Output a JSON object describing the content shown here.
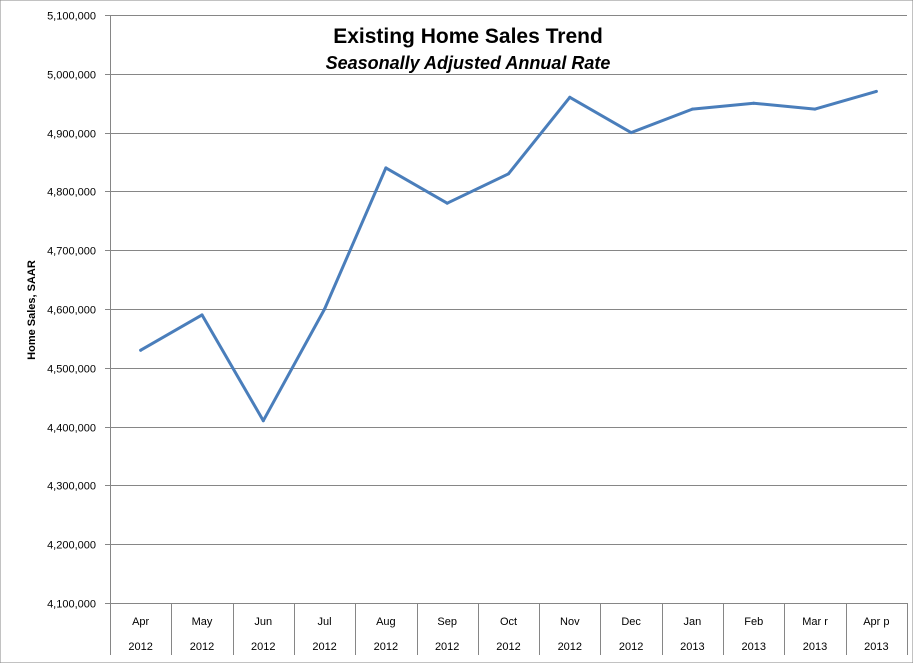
{
  "chart_data": {
    "type": "line",
    "title": "Existing Home Sales Trend",
    "subtitle": "Seasonally Adjusted Annual Rate",
    "ylabel": "Home Sales, SAAR",
    "ylim": [
      4100000,
      5100000
    ],
    "y_ticks": [
      4100000,
      4200000,
      4300000,
      4400000,
      4500000,
      4600000,
      4700000,
      4800000,
      4900000,
      5000000,
      5100000
    ],
    "y_tick_labels": [
      "4,100,000",
      "4,200,000",
      "4,300,000",
      "4,400,000",
      "4,500,000",
      "4,600,000",
      "4,700,000",
      "4,800,000",
      "4,900,000",
      "5,000,000",
      "5,100,000"
    ],
    "categories": [
      {
        "month": "Apr",
        "year": "2012"
      },
      {
        "month": "May",
        "year": "2012"
      },
      {
        "month": "Jun",
        "year": "2012"
      },
      {
        "month": "Jul",
        "year": "2012"
      },
      {
        "month": "Aug",
        "year": "2012"
      },
      {
        "month": "Sep",
        "year": "2012"
      },
      {
        "month": "Oct",
        "year": "2012"
      },
      {
        "month": "Nov",
        "year": "2012"
      },
      {
        "month": "Dec",
        "year": "2012"
      },
      {
        "month": "Jan",
        "year": "2013"
      },
      {
        "month": "Feb",
        "year": "2013"
      },
      {
        "month": "Mar r",
        "year": "2013"
      },
      {
        "month": "Apr p",
        "year": "2013"
      }
    ],
    "series": [
      {
        "values": [
          4530000,
          4590000,
          4410000,
          4600000,
          4840000,
          4780000,
          4830000,
          4960000,
          4900000,
          4940000,
          4950000,
          4940000,
          4970000
        ]
      }
    ],
    "grid": true,
    "legend": "none",
    "line_color": "#4a7ebb",
    "grid_color": "#868686"
  }
}
